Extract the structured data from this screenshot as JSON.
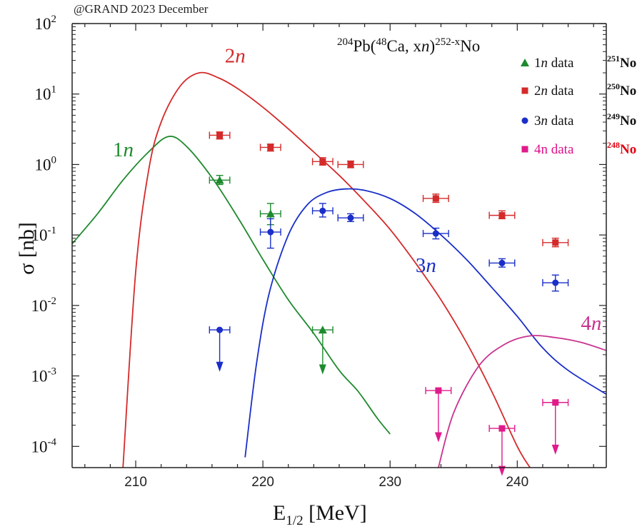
{
  "watermark": "@GRAND 2023 December",
  "reaction": {
    "sup1": "204",
    "p1": "Pb(",
    "sup2": "48",
    "p2": "Ca, x",
    "p3": "n",
    "p4": ")",
    "sup3": "252-x",
    "p5": "No"
  },
  "axes": {
    "xlabel_main": "E",
    "xlabel_sub": "1/2",
    "xlabel_unit": " [MeV]",
    "ylabel": "σ [nb]"
  },
  "colors": {
    "1n": "#1e8a2e",
    "2n": "#d42a2a",
    "3n": "#1a2fc8",
    "4n": "#c8328f",
    "4n_points": "#e01a8a",
    "4n_legend_text": "#e0108a",
    "4n_iso": "#e00010"
  },
  "legend": [
    {
      "marker": "triangle",
      "n": "1",
      "label": "n data",
      "iso_mass": "251",
      "iso": "No",
      "color_key": "1n",
      "italic": true
    },
    {
      "marker": "square",
      "n": "2",
      "label": "n data",
      "iso_mass": "250",
      "iso": "No",
      "color_key": "2n",
      "italic": true
    },
    {
      "marker": "circle",
      "n": "3",
      "label": "n data",
      "iso_mass": "249",
      "iso": "No",
      "color_key": "3n",
      "italic": true
    },
    {
      "marker": "square",
      "n": "4n data",
      "label": "",
      "iso_mass": "248",
      "iso": "No",
      "color_key": "4n_points",
      "italic": false
    }
  ],
  "chart_data": {
    "type": "scatter",
    "title": "",
    "xlabel": "E1/2 [MeV]",
    "ylabel": "σ [nb]",
    "xlim": [
      205,
      247
    ],
    "ylim": [
      5e-05,
      100
    ],
    "yscale": "log",
    "x_ticks": [
      210,
      220,
      230,
      240
    ],
    "y_ticks": [
      {
        "value": 0.0001,
        "base": "10",
        "exp": "-4"
      },
      {
        "value": 0.001,
        "base": "10",
        "exp": "-3"
      },
      {
        "value": 0.01,
        "base": "10",
        "exp": "-2"
      },
      {
        "value": 0.1,
        "base": "10",
        "exp": "-1"
      },
      {
        "value": 1,
        "base": "10",
        "exp": "0"
      },
      {
        "value": 10,
        "base": "10",
        "exp": "1"
      },
      {
        "value": 100,
        "base": "10",
        "exp": "2"
      }
    ],
    "curves": [
      {
        "label": "1n",
        "color_key": "1n",
        "points": [
          [
            205,
            0.075
          ],
          [
            207,
            0.2
          ],
          [
            209,
            0.6
          ],
          [
            211,
            1.5
          ],
          [
            212.6,
            2.5
          ],
          [
            214,
            1.8
          ],
          [
            216,
            0.65
          ],
          [
            218,
            0.18
          ],
          [
            220,
            0.045
          ],
          [
            222,
            0.012
          ],
          [
            224,
            0.004
          ],
          [
            226,
            0.0012
          ],
          [
            227.5,
            0.0006
          ],
          [
            229,
            0.00025
          ],
          [
            230,
            0.00015
          ]
        ]
      },
      {
        "label": "2n",
        "color_key": "2n",
        "points": [
          [
            209,
            5e-05
          ],
          [
            210,
            0.03
          ],
          [
            211,
            0.8
          ],
          [
            212,
            4
          ],
          [
            213.5,
            13
          ],
          [
            215,
            20
          ],
          [
            216.5,
            17
          ],
          [
            218,
            12
          ],
          [
            220,
            6.5
          ],
          [
            222,
            3.2
          ],
          [
            224,
            1.5
          ],
          [
            226,
            0.7
          ],
          [
            228,
            0.3
          ],
          [
            230,
            0.12
          ],
          [
            232,
            0.04
          ],
          [
            234,
            0.012
          ],
          [
            236,
            0.003
          ],
          [
            238,
            0.0006
          ],
          [
            240,
            0.0001
          ],
          [
            241,
            5e-05
          ]
        ]
      },
      {
        "label": "3n",
        "color_key": "3n",
        "points": [
          [
            218.6,
            7e-05
          ],
          [
            219.5,
            0.0015
          ],
          [
            220.5,
            0.015
          ],
          [
            222,
            0.1
          ],
          [
            223.5,
            0.27
          ],
          [
            225,
            0.4
          ],
          [
            226.5,
            0.45
          ],
          [
            228,
            0.43
          ],
          [
            230,
            0.33
          ],
          [
            232,
            0.2
          ],
          [
            234,
            0.1
          ],
          [
            236,
            0.045
          ],
          [
            238,
            0.018
          ],
          [
            240,
            0.007
          ],
          [
            242,
            0.0025
          ],
          [
            244,
            0.0012
          ],
          [
            247,
            0.00055
          ]
        ]
      },
      {
        "label": "4n",
        "color_key": "4n",
        "points": [
          [
            233.8,
            5e-05
          ],
          [
            235,
            0.0003
          ],
          [
            237,
            0.0014
          ],
          [
            239,
            0.0028
          ],
          [
            241,
            0.0037
          ],
          [
            243,
            0.0035
          ],
          [
            245,
            0.003
          ],
          [
            247,
            0.0023
          ]
        ]
      }
    ],
    "curve_labels": [
      {
        "text": "1n",
        "color_key": "1n",
        "x": 208.2,
        "y": 1.3
      },
      {
        "text": "2n",
        "color_key": "2n",
        "x": 217,
        "y": 28
      },
      {
        "text": "3n",
        "color_key": "3n",
        "x": 232,
        "y": 0.03
      },
      {
        "text": "4n",
        "color_key": "4n",
        "x": 245,
        "y": 0.0045
      }
    ],
    "series": [
      {
        "name": "1n data",
        "marker": "triangle",
        "color_key": "1n",
        "points": [
          {
            "x": 216.6,
            "y": 0.6,
            "xerr": 0.8,
            "ylo": 0.52,
            "yhi": 0.7
          },
          {
            "x": 220.6,
            "y": 0.2,
            "xerr": 0.8,
            "ylo": 0.14,
            "yhi": 0.28
          },
          {
            "x": 224.7,
            "y": 0.0045,
            "xerr": 0.8,
            "upper_limit": true,
            "arrow_to": 0.0011
          }
        ]
      },
      {
        "name": "2n data",
        "marker": "square",
        "color_key": "2n",
        "points": [
          {
            "x": 216.6,
            "y": 2.6,
            "xerr": 0.8,
            "ylo": 2.3,
            "yhi": 2.9
          },
          {
            "x": 220.6,
            "y": 1.75,
            "xerr": 0.8,
            "ylo": 1.55,
            "yhi": 1.95
          },
          {
            "x": 224.7,
            "y": 1.1,
            "xerr": 0.8,
            "ylo": 0.98,
            "yhi": 1.25
          },
          {
            "x": 226.9,
            "y": 1.0,
            "xerr": 1.0,
            "ylo": 0.9,
            "yhi": 1.12
          },
          {
            "x": 233.6,
            "y": 0.33,
            "xerr": 1.0,
            "ylo": 0.29,
            "yhi": 0.38
          },
          {
            "x": 238.8,
            "y": 0.19,
            "xerr": 1.0,
            "ylo": 0.17,
            "yhi": 0.22
          },
          {
            "x": 243.0,
            "y": 0.078,
            "xerr": 1.0,
            "ylo": 0.068,
            "yhi": 0.09
          }
        ]
      },
      {
        "name": "3n data",
        "marker": "circle",
        "color_key": "3n",
        "points": [
          {
            "x": 216.6,
            "y": 0.0045,
            "xerr": 0.8,
            "upper_limit": true,
            "arrow_to": 0.0012
          },
          {
            "x": 220.6,
            "y": 0.11,
            "xerr": 0.8,
            "ylo": 0.065,
            "yhi": 0.17
          },
          {
            "x": 224.7,
            "y": 0.22,
            "xerr": 0.8,
            "ylo": 0.18,
            "yhi": 0.28
          },
          {
            "x": 226.9,
            "y": 0.175,
            "xerr": 1.0,
            "ylo": 0.155,
            "yhi": 0.2
          },
          {
            "x": 233.6,
            "y": 0.105,
            "xerr": 1.0,
            "ylo": 0.088,
            "yhi": 0.125
          },
          {
            "x": 238.8,
            "y": 0.04,
            "xerr": 1.0,
            "ylo": 0.035,
            "yhi": 0.046
          },
          {
            "x": 243.0,
            "y": 0.021,
            "xerr": 1.0,
            "ylo": 0.016,
            "yhi": 0.027
          }
        ]
      },
      {
        "name": "4n data",
        "marker": "square",
        "color_key": "4n_points",
        "points": [
          {
            "x": 233.8,
            "y": 0.00062,
            "xerr": 1.0,
            "upper_limit": true,
            "arrow_to": 0.00012
          },
          {
            "x": 238.8,
            "y": 0.00018,
            "xerr": 1.0,
            "upper_limit": true,
            "arrow_to": 4e-05
          },
          {
            "x": 243.0,
            "y": 0.00042,
            "xerr": 1.0,
            "upper_limit": true,
            "arrow_to": 8e-05
          }
        ]
      }
    ]
  }
}
